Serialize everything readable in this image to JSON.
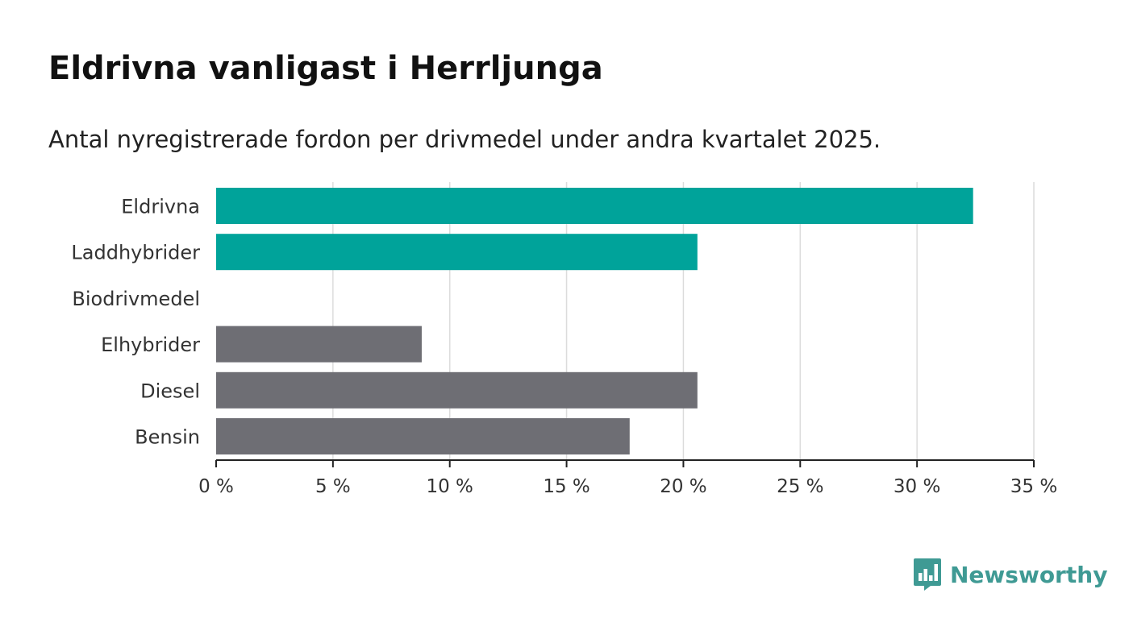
{
  "title": "Eldrivna vanligast i Herrljunga",
  "subtitle": "Antal nyregistrerade fordon per drivmedel under andra kvartalet 2025.",
  "brand": {
    "name": "Newsworthy",
    "icon": "bar-chart-speech-bubble-icon"
  },
  "colors": {
    "highlight": "#00a39a",
    "default": "#6e6e74"
  },
  "chart_data": {
    "type": "bar",
    "orientation": "horizontal",
    "categories": [
      "Eldrivna",
      "Laddhybrider",
      "Biodrivmedel",
      "Elhybrider",
      "Diesel",
      "Bensin"
    ],
    "values": [
      32.4,
      20.6,
      0,
      8.8,
      20.6,
      17.7
    ],
    "highlight": [
      true,
      true,
      false,
      false,
      false,
      false
    ],
    "xlim": [
      0,
      35
    ],
    "x_ticks": [
      0,
      5,
      10,
      15,
      20,
      25,
      30,
      35
    ],
    "x_tick_labels": [
      "0 %",
      "5 %",
      "10 %",
      "15 %",
      "20 %",
      "25 %",
      "30 %",
      "35 %"
    ],
    "grid": true,
    "xlabel": "",
    "ylabel": ""
  }
}
